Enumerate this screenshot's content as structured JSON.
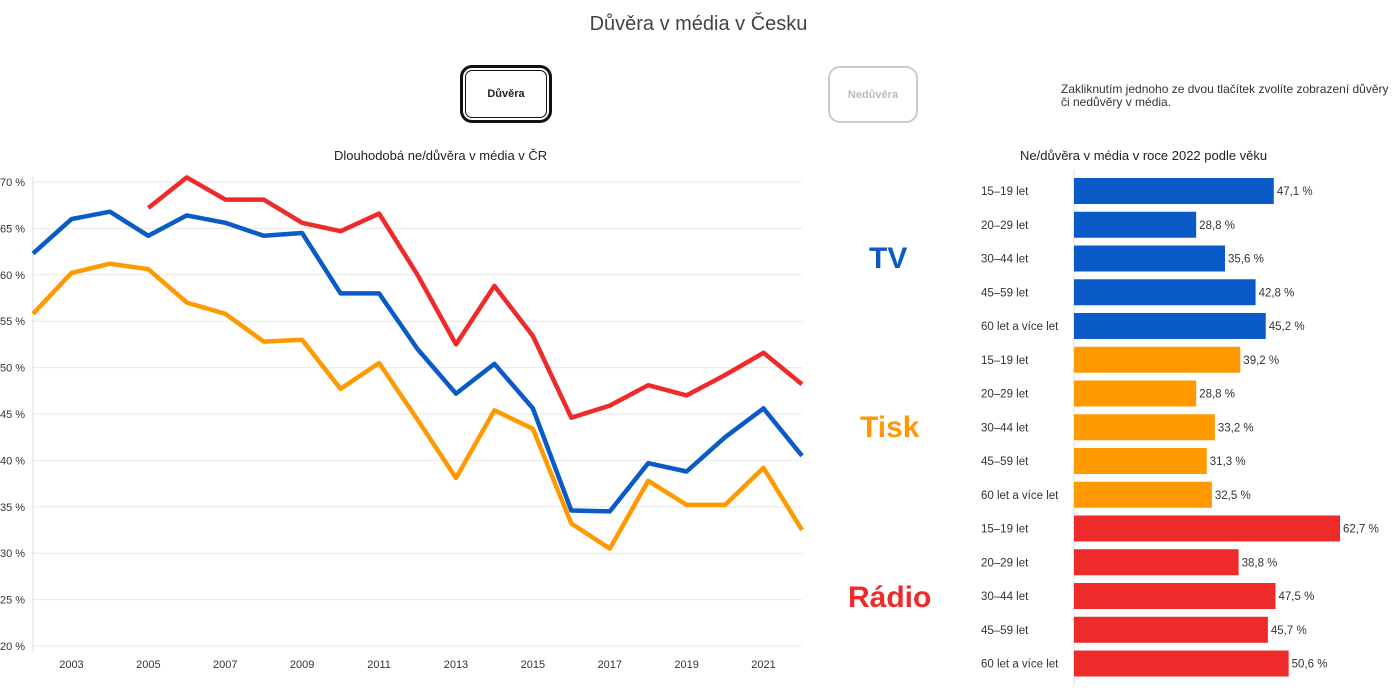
{
  "page_title": "Důvěra v média v Česku",
  "buttons": {
    "trust": "Důvěra",
    "distrust": "Nedůvěra"
  },
  "hint": "Zakliknutím jednoho ze dvou tlačítek zvolíte zobrazení důvěry či nedůvěry v média.",
  "media_labels": {
    "tv": "TV",
    "print": "Tisk",
    "radio": "Rádio"
  },
  "colors": {
    "tv": "#0a5ac8",
    "print": "#ff9900",
    "radio": "#ee2a2a"
  },
  "chart_data": [
    {
      "type": "line",
      "title": "Dlouhodobá ne/důvěra v média v ČR",
      "x": [
        2002,
        2003,
        2004,
        2005,
        2006,
        2007,
        2008,
        2009,
        2010,
        2011,
        2012,
        2013,
        2014,
        2015,
        2016,
        2017,
        2018,
        2019,
        2020,
        2021,
        2022
      ],
      "xticks": [
        "2003",
        "2005",
        "2007",
        "2009",
        "2011",
        "2013",
        "2015",
        "2017",
        "2019",
        "2021"
      ],
      "yticks": [
        "20 %",
        "25 %",
        "30 %",
        "35 %",
        "40 %",
        "45 %",
        "50 %",
        "55 %",
        "60 %",
        "65 %",
        "70 %"
      ],
      "ylim": [
        20,
        70
      ],
      "grid": true,
      "series": [
        {
          "key": "tv",
          "values": [
            62.3,
            66.0,
            66.8,
            64.2,
            66.4,
            65.6,
            64.2,
            64.5,
            58.0,
            58.0,
            52.0,
            47.2,
            50.4,
            45.6,
            34.6,
            34.5,
            39.7,
            38.8,
            42.5,
            45.6,
            40.5
          ]
        },
        {
          "key": "print",
          "values": [
            55.8,
            60.2,
            61.2,
            60.6,
            57.0,
            55.8,
            52.8,
            53.0,
            47.7,
            50.5,
            44.4,
            38.1,
            45.4,
            43.4,
            33.2,
            30.5,
            37.8,
            35.2,
            35.2,
            39.2,
            32.5
          ]
        },
        {
          "key": "radio",
          "values": [
            null,
            null,
            null,
            67.2,
            70.5,
            68.1,
            68.1,
            65.6,
            64.7,
            66.6,
            60.0,
            52.5,
            58.8,
            53.4,
            44.6,
            45.9,
            48.1,
            47.0,
            49.2,
            51.6,
            48.2
          ]
        }
      ]
    },
    {
      "type": "bar",
      "title": "Ne/důvěra v média v roce 2022 podle věku",
      "groups": [
        {
          "key": "tv",
          "categories": [
            "15–19 let",
            "20–29 let",
            "30–44 let",
            "45–59 let",
            "60 let a více let"
          ],
          "values": [
            47.1,
            28.8,
            35.6,
            42.8,
            45.2
          ],
          "labels": [
            "47,1 %",
            "28,8 %",
            "35,6 %",
            "42,8 %",
            "45,2 %"
          ]
        },
        {
          "key": "print",
          "categories": [
            "15–19 let",
            "20–29 let",
            "30–44 let",
            "45–59 let",
            "60 let a více let"
          ],
          "values": [
            39.2,
            28.8,
            33.2,
            31.3,
            32.5
          ],
          "labels": [
            "39,2 %",
            "28,8 %",
            "33,2 %",
            "31,3 %",
            "32,5 %"
          ]
        },
        {
          "key": "radio",
          "categories": [
            "15–19 let",
            "20–29 let",
            "30–44 let",
            "45–59 let",
            "60 let a více let"
          ],
          "values": [
            62.7,
            38.8,
            47.5,
            45.7,
            50.6
          ],
          "labels": [
            "62,7 %",
            "38,8 %",
            "47,5 %",
            "45,7 %",
            "50,6 %"
          ]
        }
      ]
    }
  ]
}
